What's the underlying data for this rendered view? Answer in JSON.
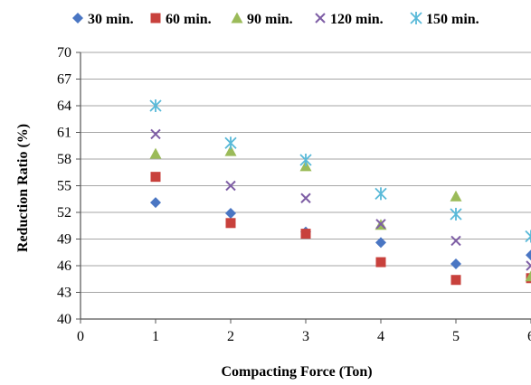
{
  "chart_data": {
    "type": "scatter",
    "title": "",
    "xlabel": "Compacting Force (Ton)",
    "ylabel": "Reduction Ratio (%)",
    "xlim": [
      0,
      6
    ],
    "ylim": [
      40,
      70
    ],
    "x_ticks": [
      "0",
      "1",
      "2",
      "3",
      "4",
      "5",
      "6"
    ],
    "y_ticks": [
      "40",
      "43",
      "46",
      "49",
      "52",
      "55",
      "58",
      "61",
      "64",
      "67",
      "70"
    ],
    "grid": "horizontal",
    "legend_position": "top",
    "series": [
      {
        "name": "30 min.",
        "marker": "diamond",
        "color": "#4a76c3",
        "points": [
          {
            "x": 1,
            "y": 53.1
          },
          {
            "x": 2,
            "y": 51.9
          },
          {
            "x": 3,
            "y": 49.8
          },
          {
            "x": 4,
            "y": 48.6
          },
          {
            "x": 5,
            "y": 46.2
          },
          {
            "x": 6,
            "y": 47.2
          }
        ]
      },
      {
        "name": "60 min.",
        "marker": "square",
        "color": "#c8413c",
        "points": [
          {
            "x": 1,
            "y": 56.0
          },
          {
            "x": 2,
            "y": 50.8
          },
          {
            "x": 3,
            "y": 49.6
          },
          {
            "x": 4,
            "y": 46.4
          },
          {
            "x": 5,
            "y": 44.4
          },
          {
            "x": 6,
            "y": 44.6
          }
        ]
      },
      {
        "name": "90 min.",
        "marker": "triangle",
        "color": "#9bbb59",
        "points": [
          {
            "x": 1,
            "y": 58.6
          },
          {
            "x": 2,
            "y": 58.9
          },
          {
            "x": 3,
            "y": 57.2
          },
          {
            "x": 4,
            "y": 50.6
          },
          {
            "x": 5,
            "y": 53.8
          },
          {
            "x": 6,
            "y": 44.8
          }
        ]
      },
      {
        "name": "120 min.",
        "marker": "x",
        "color": "#7e5ea5",
        "points": [
          {
            "x": 1,
            "y": 60.8
          },
          {
            "x": 2,
            "y": 55.0
          },
          {
            "x": 3,
            "y": 53.6
          },
          {
            "x": 4,
            "y": 50.7
          },
          {
            "x": 5,
            "y": 48.8
          },
          {
            "x": 6,
            "y": 46.0
          }
        ]
      },
      {
        "name": "150 min.",
        "marker": "asterisk",
        "color": "#58b9d8",
        "points": [
          {
            "x": 1,
            "y": 64.0
          },
          {
            "x": 2,
            "y": 59.8
          },
          {
            "x": 3,
            "y": 57.9
          },
          {
            "x": 4,
            "y": 54.1
          },
          {
            "x": 5,
            "y": 51.8
          },
          {
            "x": 6,
            "y": 49.3
          }
        ]
      }
    ]
  }
}
